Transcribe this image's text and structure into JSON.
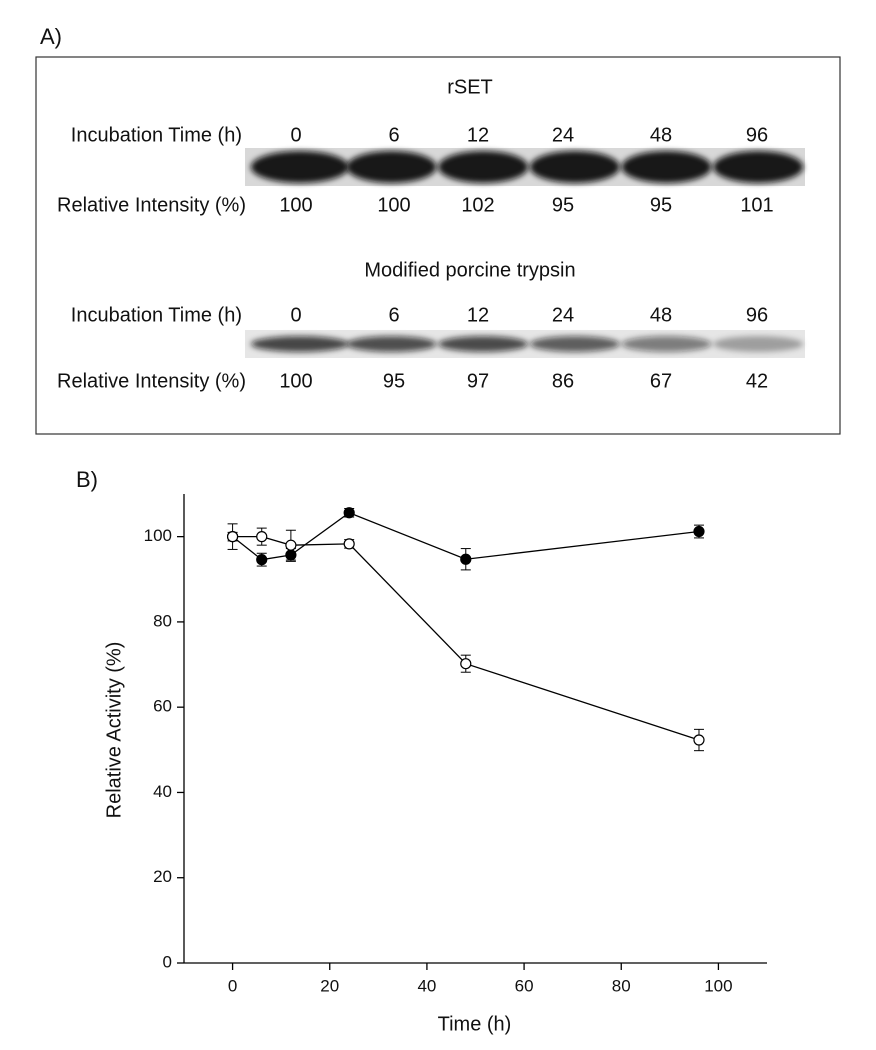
{
  "panel_a": {
    "label": "A)",
    "blots": [
      {
        "title": "rSET",
        "time_label": "Incubation Time (h)",
        "times": [
          0,
          6,
          12,
          24,
          48,
          96
        ],
        "intensity_label": "Relative Intensity (%)",
        "intensities": [
          100,
          100,
          102,
          95,
          95,
          101
        ]
      },
      {
        "title": "Modified porcine trypsin",
        "time_label": "Incubation Time (h)",
        "times": [
          0,
          6,
          12,
          24,
          48,
          96
        ],
        "intensity_label": "Relative Intensity (%)",
        "intensities": [
          100,
          95,
          97,
          86,
          67,
          42
        ]
      }
    ]
  },
  "chart_data": {
    "type": "line",
    "panel_label": "B)",
    "xlabel": "Time (h)",
    "ylabel": "Relative Activity (%)",
    "x": [
      0,
      6,
      12,
      24,
      48,
      96
    ],
    "series": [
      {
        "color": "#000000",
        "marker": "filled",
        "values": [
          100,
          94.6,
          95.7,
          105.6,
          94.7,
          101.2
        ],
        "errors": [
          1,
          1.5,
          1.5,
          1,
          2.5,
          1.5
        ]
      },
      {
        "color": "#000000",
        "marker": "open",
        "values": [
          100,
          100,
          98,
          98.3,
          70.2,
          52.3
        ],
        "errors": [
          3,
          2,
          3.5,
          1,
          2,
          2.5
        ]
      }
    ],
    "xlim": [
      -10,
      110
    ],
    "ylim": [
      0,
      110
    ],
    "xticks": [
      0,
      20,
      40,
      60,
      80,
      100
    ],
    "yticks": [
      0,
      20,
      40,
      60,
      80,
      100
    ]
  }
}
